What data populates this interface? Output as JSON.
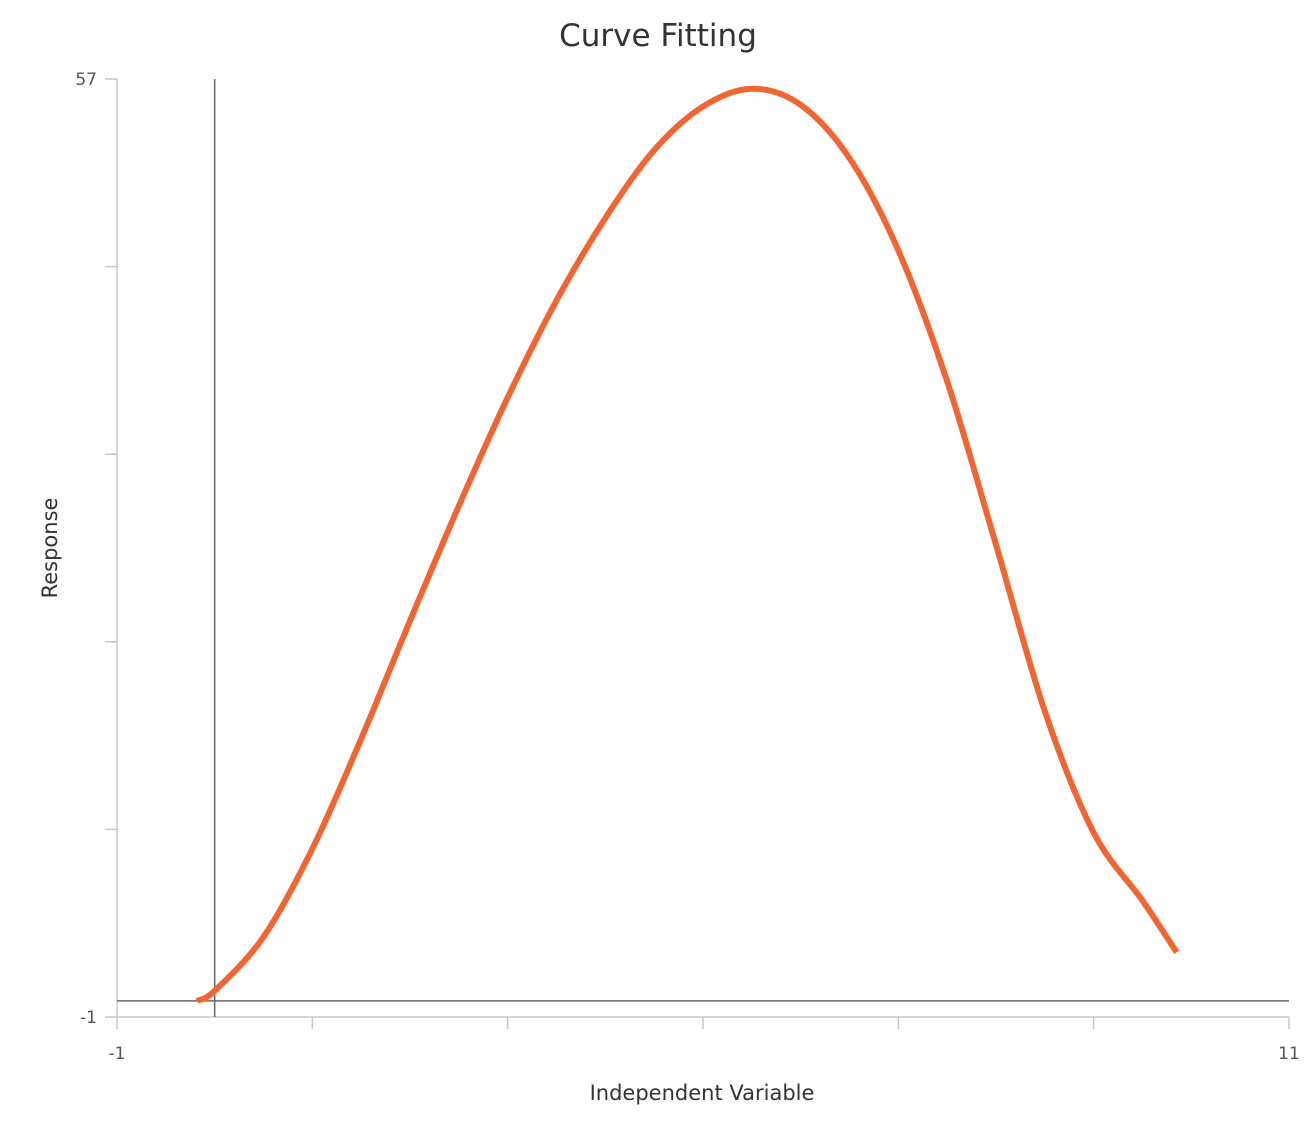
{
  "chart_data": {
    "type": "line",
    "title": "Curve Fitting",
    "xlabel": "Independent Variable",
    "ylabel": "Response",
    "xlim": [
      -1,
      11
    ],
    "ylim": [
      -1,
      57
    ],
    "x_tick_labels": [
      "-1",
      "11"
    ],
    "y_tick_labels": [
      "57",
      "-1"
    ],
    "x_ticks": [
      -1,
      1,
      3,
      5,
      7,
      9,
      11
    ],
    "y_ticks": [
      -1,
      10.6,
      22.2,
      33.8,
      45.4,
      57
    ],
    "zero_lines": true,
    "grid": false,
    "series": [
      {
        "x": [
          -0.18,
          0.0,
          0.5,
          1.0,
          1.5,
          2.0,
          2.5,
          3.0,
          3.5,
          4.0,
          4.5,
          5.0,
          5.5,
          6.0,
          6.5,
          7.0,
          7.5,
          8.0,
          8.5,
          9.0,
          9.5,
          9.85
        ],
        "y": [
          0.0,
          0.62,
          3.95,
          9.4,
          16.2,
          23.5,
          30.6,
          37.3,
          43.3,
          48.4,
          52.6,
          55.3,
          56.4,
          55.4,
          52.1,
          46.4,
          38.3,
          28.2,
          17.9,
          10.4,
          6.2,
          3.0
        ],
        "color": "#f06532"
      }
    ],
    "colors": {
      "curve": "#f06532",
      "axis": "#c8c8c8",
      "zero_line": "#666666",
      "text": "#333333"
    }
  }
}
